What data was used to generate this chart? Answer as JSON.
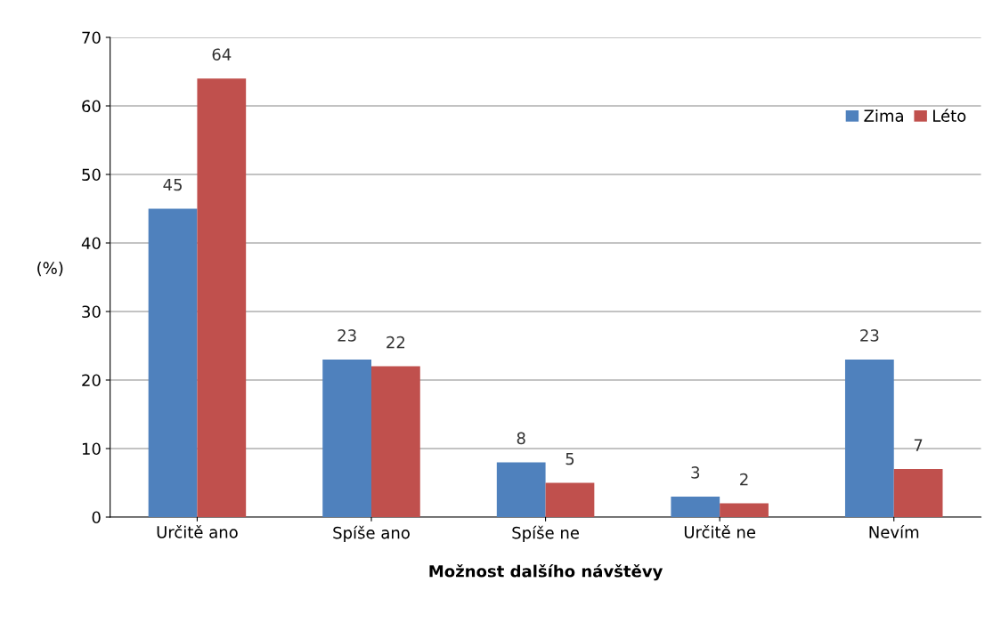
{
  "chart_data": {
    "type": "bar",
    "xlabel": "Možnost dalšího návštěvy",
    "ylabel": "(%)",
    "categories": [
      "Určitě ano",
      "Spíše ano",
      "Spíše ne",
      "Určitě ne",
      "Nevím"
    ],
    "series": [
      {
        "name": "Zima",
        "color": "#4f81bd",
        "values": [
          45,
          23,
          8,
          3,
          23
        ]
      },
      {
        "name": "Léto",
        "color": "#c0504d",
        "values": [
          64,
          22,
          5,
          2,
          7
        ]
      }
    ],
    "ylim": [
      0,
      70
    ],
    "yticks": [
      0,
      10,
      20,
      30,
      40,
      50,
      60,
      70
    ],
    "grid": "y",
    "legend": "top right",
    "data_labels": true
  }
}
